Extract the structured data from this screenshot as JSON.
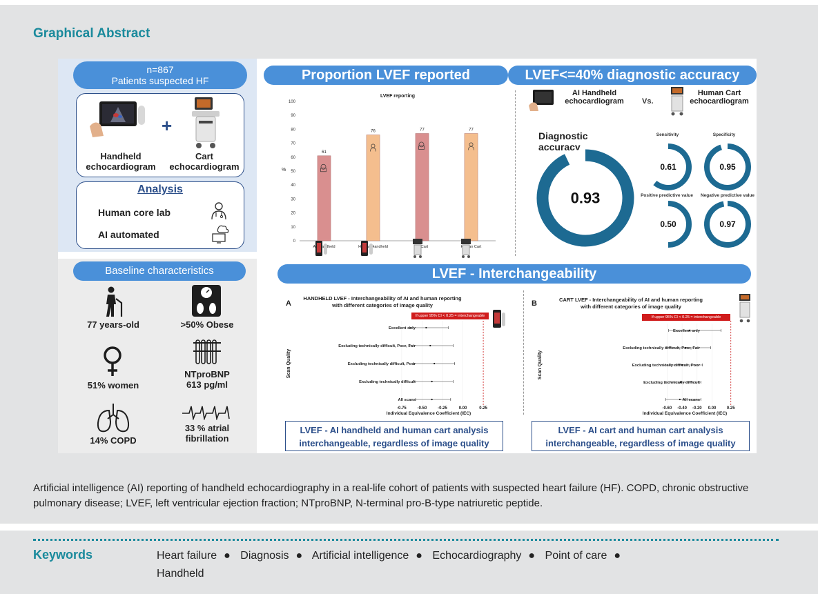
{
  "heading": "Graphical Abstract",
  "left": {
    "cohort_n": "n=867",
    "cohort_desc": "Patients suspected HF",
    "handheld_label_1": "Handheld",
    "handheld_label_2": "echocardiogram",
    "cart_label_1": "Cart",
    "cart_label_2": "echocardiogram",
    "plus": "+",
    "analysis_title": "Analysis",
    "analysis_items": [
      "Human core lab",
      "AI automated"
    ],
    "baseline_title": "Baseline characteristics",
    "baseline_items": [
      {
        "line1": "77 years-old",
        "line2": "",
        "icon": "elderly-person-icon"
      },
      {
        "line1": ">50% Obese",
        "line2": "",
        "icon": "scale-icon"
      },
      {
        "line1": "51% women",
        "line2": "",
        "icon": "female-symbol-icon"
      },
      {
        "line1": "NTproBNP",
        "line2": "613 pg/ml",
        "icon": "test-tubes-icon"
      },
      {
        "line1": "14% COPD",
        "line2": "",
        "icon": "lungs-icon"
      },
      {
        "line1": "33 % atrial",
        "line2": "fibrillation",
        "icon": "ecg-icon"
      }
    ]
  },
  "proportion": {
    "pill": "Proportion LVEF reported",
    "chart_title": "LVEF reporting",
    "ylabel": "%"
  },
  "accuracy": {
    "pill": "LVEF<=40% diagnostic accuracy",
    "device_a_1": "AI Handheld",
    "device_a_2": "echocardiogram",
    "vs": "Vs.",
    "device_b_1": "Human Cart",
    "device_b_2": "echocardiogram",
    "main_label": "Diagnostic accuracy",
    "main_value": "0.93",
    "metrics": [
      {
        "label": "Sensitivity",
        "value": "0.61"
      },
      {
        "label": "Specificity",
        "value": "0.95"
      },
      {
        "label": "Positive predictive value",
        "value": "0.50"
      },
      {
        "label": "Negative predictive value",
        "value": "0.97"
      }
    ]
  },
  "interchange": {
    "pill": "LVEF - Interchangeability",
    "ylabel": "Scan Quality",
    "xlabel": "Individual Equivalence Coefficient (IEC)",
    "legend_note": "If upper 95% CI < 0.25 = interchangeable",
    "panel_a": {
      "letter": "A",
      "title_1": "HANDHELD LVEF - Interchangeability of AI and human reporting",
      "title_2": "with different categories of image quality",
      "conclusion_1": "LVEF - AI handheld and human cart analysis",
      "conclusion_2": "interchangeable, regardless of image quality"
    },
    "panel_b": {
      "letter": "B",
      "title_1": "CART LVEF - Interchangeability of AI and human reporting",
      "title_2": "with different categories of image quality",
      "conclusion_1": "LVEF - AI cart and human cart analysis",
      "conclusion_2": "interchangeable, regardless of image quality"
    }
  },
  "chart_data": [
    {
      "type": "bar",
      "title": "LVEF reporting",
      "ylabel": "%",
      "categories": [
        "AI- Handheld",
        "Human Handheld",
        "AI-Cart",
        "Human Cart"
      ],
      "values": [
        61,
        76,
        77,
        77
      ],
      "colors": [
        "#d98f8f",
        "#f4be8e",
        "#d98f8f",
        "#f4be8e"
      ],
      "ylim": [
        0,
        100
      ],
      "yticks": [
        0,
        10,
        20,
        30,
        40,
        50,
        60,
        70,
        80,
        90,
        100
      ]
    },
    {
      "type": "scatter",
      "title": "HANDHELD LVEF - Interchangeability of AI and human reporting with different categories of image quality",
      "categories": [
        "Excellent only",
        "Excluding technically difficult, Poor, Fair",
        "Excluding technically difficult, Poor",
        "Excluding technically difficult",
        "All scans"
      ],
      "estimate": [
        -0.45,
        -0.4,
        -0.35,
        -0.38,
        -0.38
      ],
      "ci_low": [
        -0.65,
        -0.65,
        -0.6,
        -0.6,
        -0.58
      ],
      "ci_high": [
        -0.18,
        -0.12,
        -0.1,
        -0.12,
        -0.15
      ],
      "threshold": 0.25,
      "xlim": [
        -0.8,
        0.3
      ],
      "xticks": [
        "-0.75",
        "-0.50",
        "-0.25",
        "0.00",
        "0.25"
      ],
      "xtick_values": [
        -0.75,
        -0.5,
        -0.25,
        0.0,
        0.25
      ]
    },
    {
      "type": "scatter",
      "title": "CART LVEF - Interchangeability of AI and human reporting with different categories of image quality",
      "categories": [
        "Excellent only",
        "Excluding technically difficult, Poor, Fair",
        "Excluding technically difficult, Poor",
        "Excluding technically difficult",
        "All scans"
      ],
      "estimate": [
        -0.3,
        -0.35,
        -0.4,
        -0.42,
        -0.43
      ],
      "ci_low": [
        -0.58,
        -0.62,
        -0.62,
        -0.62,
        -0.62
      ],
      "ci_high": [
        0.12,
        -0.02,
        -0.13,
        -0.15,
        -0.15
      ],
      "threshold": 0.25,
      "xlim": [
        -0.64,
        0.28
      ],
      "xticks": [
        "-0.60",
        "-0.40",
        "-0.20",
        "0.00",
        "0.25"
      ],
      "xtick_values": [
        -0.6,
        -0.4,
        -0.2,
        0.0,
        0.25
      ]
    }
  ],
  "caption": "Artificial intelligence (AI) reporting of handheld echocardiography in a real-life cohort of patients with suspected heart failure (HF). COPD, chronic obstructive pulmonary disease; LVEF, left ventricular ejection fraction; NTproBNP, N-terminal pro-B-type natriuretic peptide.",
  "keywords_heading": "Keywords",
  "keywords": [
    "Heart failure",
    "Diagnosis",
    "Artificial intelligence",
    "Echocardiography",
    "Point of care",
    "Handheld"
  ],
  "colors": {
    "teal": "#1a8a9c",
    "pill_blue": "#4a90d9",
    "donut": "#1d6a92",
    "navy": "#2c4f8a"
  }
}
